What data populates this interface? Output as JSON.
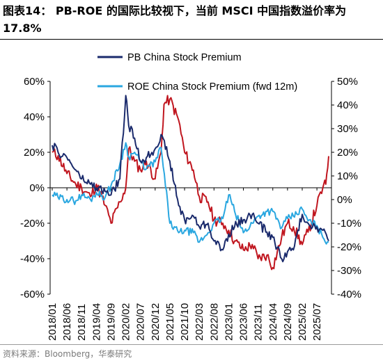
{
  "title": "图表14： PB-ROE 的国际比较视下，当前 MSCI 中国指数溢价率为 17.8%",
  "source": "资料来源：Bloomberg，华泰研究",
  "chart_data": {
    "type": "line",
    "title": "",
    "xlabel": "",
    "ylabel": "",
    "x_ticks": [
      "2018/01",
      "2018/06",
      "2018/11",
      "2019/04",
      "2019/09",
      "2020/02",
      "2020/07",
      "2020/12",
      "2021/05",
      "2021/10",
      "2022/03",
      "2022/08",
      "2023/01",
      "2023/06",
      "2023/11",
      "2024/04",
      "2024/09",
      "2025/02",
      "2025/07"
    ],
    "left_axis": {
      "ylim": [
        -60,
        60
      ],
      "ticks": [
        "60%",
        "40%",
        "20%",
        "0%",
        "-20%",
        "-40%",
        "-60%"
      ]
    },
    "right_axis": {
      "ylim": [
        -40,
        50
      ],
      "ticks": [
        "50%",
        "40%",
        "30%",
        "20%",
        "10%",
        "0%",
        "-10%",
        "-20%",
        "-30%",
        "-40%"
      ]
    },
    "legend_placement": "top-center",
    "series": [
      {
        "name": "PB China Stock Premium",
        "axis": "left",
        "color": "#1a2a6c",
        "x": [
          "2018/01",
          "2018/03",
          "2018/06",
          "2018/09",
          "2018/11",
          "2019/02",
          "2019/04",
          "2019/07",
          "2019/09",
          "2019/12",
          "2020/02",
          "2020/03",
          "2020/05",
          "2020/07",
          "2020/09",
          "2020/12",
          "2021/02",
          "2021/05",
          "2021/08",
          "2021/10",
          "2022/01",
          "2022/03",
          "2022/06",
          "2022/08",
          "2022/11",
          "2023/01",
          "2023/03",
          "2023/06",
          "2023/09",
          "2023/11",
          "2024/02",
          "2024/04",
          "2024/07",
          "2024/09",
          "2024/11",
          "2025/02",
          "2025/04",
          "2025/07",
          "2025/09",
          "2025/11"
        ],
        "y": [
          24,
          20,
          17,
          10,
          5,
          2,
          0,
          -2,
          -4,
          5,
          52,
          35,
          28,
          15,
          17,
          22,
          30,
          15,
          -10,
          -18,
          -16,
          -22,
          -20,
          -30,
          -35,
          -26,
          -22,
          -18,
          -15,
          -20,
          -25,
          -28,
          -40,
          -36,
          -35,
          -15,
          -20,
          -22,
          -24,
          -30
        ]
      },
      {
        "name": "ROE China Stock Premium (fwd 12m)",
        "axis": "right",
        "color": "#2aa7e0",
        "x": [
          "2018/01",
          "2018/03",
          "2018/06",
          "2018/09",
          "2018/11",
          "2019/02",
          "2019/04",
          "2019/07",
          "2019/09",
          "2019/12",
          "2020/02",
          "2020/03",
          "2020/05",
          "2020/07",
          "2020/09",
          "2020/12",
          "2021/02",
          "2021/05",
          "2021/08",
          "2021/10",
          "2022/01",
          "2022/03",
          "2022/06",
          "2022/08",
          "2022/11",
          "2023/01",
          "2023/03",
          "2023/06",
          "2023/09",
          "2023/11",
          "2024/02",
          "2024/04",
          "2024/07",
          "2024/09",
          "2024/11",
          "2025/02",
          "2025/04",
          "2025/07",
          "2025/09",
          "2025/11"
        ],
        "y": [
          2,
          1,
          0,
          -0.5,
          2,
          0,
          3,
          1,
          6,
          15,
          24,
          18,
          20,
          16,
          13,
          16,
          22,
          -10,
          -14,
          -13,
          -14,
          -18,
          -14,
          -10,
          -8,
          2,
          -5,
          -14,
          -10,
          -7,
          -5,
          -5,
          -12,
          -8,
          -7,
          -4,
          -9,
          -11,
          -16,
          -18
        ]
      },
      {
        "name": "",
        "axis": "left",
        "color": "#c0161f",
        "x": [
          "2018/01",
          "2018/03",
          "2018/06",
          "2018/09",
          "2018/11",
          "2019/02",
          "2019/04",
          "2019/07",
          "2019/09",
          "2019/12",
          "2020/02",
          "2020/03",
          "2020/05",
          "2020/07",
          "2020/09",
          "2020/12",
          "2021/02",
          "2021/03",
          "2021/05",
          "2021/08",
          "2021/10",
          "2022/01",
          "2022/03",
          "2022/06",
          "2022/08",
          "2022/11",
          "2023/01",
          "2023/03",
          "2023/06",
          "2023/09",
          "2023/11",
          "2024/02",
          "2024/04",
          "2024/07",
          "2024/09",
          "2024/11",
          "2025/02",
          "2025/04",
          "2025/07",
          "2025/09",
          "2025/10",
          "2025/11"
        ],
        "y": [
          20,
          18,
          8,
          2,
          0,
          -5,
          2,
          -10,
          -20,
          -8,
          0,
          22,
          15,
          10,
          15,
          5,
          20,
          47,
          50,
          38,
          20,
          10,
          -5,
          -8,
          -18,
          -20,
          -24,
          -30,
          -35,
          -32,
          -40,
          -38,
          -45,
          -28,
          -20,
          -22,
          -32,
          -25,
          -10,
          0,
          2,
          17.8
        ]
      }
    ]
  }
}
